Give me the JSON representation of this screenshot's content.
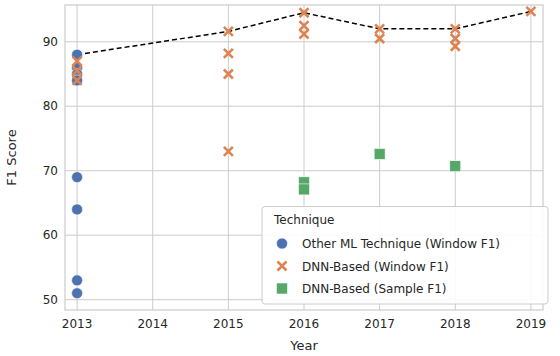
{
  "chart_data": {
    "type": "scatter",
    "x_label": "Year",
    "y_label": "F1 Score",
    "xlim": [
      2012.84,
      2019.16
    ],
    "ylim": [
      48.4,
      95.7
    ],
    "xticks": [
      2013,
      2014,
      2015,
      2016,
      2017,
      2018,
      2019
    ],
    "yticks": [
      50,
      60,
      70,
      80,
      90
    ],
    "grid": true,
    "legend": "lower right",
    "legend_title": "Technique",
    "series": [
      {
        "name": "Other ML Technique (Window F1)",
        "color": "#4c72b0",
        "marker": "circle",
        "x": [
          2013,
          2013,
          2013,
          2013,
          2013,
          2013,
          2013,
          2013
        ],
        "values": [
          88,
          86,
          85,
          84,
          69,
          64,
          53,
          51
        ]
      },
      {
        "name": "DNN-Based (Window F1)",
        "color": "#dd8452",
        "marker": "x",
        "x": [
          2013,
          2013,
          2013,
          2015,
          2015,
          2015,
          2015,
          2016,
          2016,
          2016,
          2017,
          2017,
          2018,
          2018,
          2018,
          2019
        ],
        "values": [
          87,
          85.5,
          84,
          91.6,
          88.2,
          85,
          73,
          94.5,
          92.5,
          91.2,
          92,
          90.5,
          92,
          90.5,
          89.3,
          94.7
        ]
      },
      {
        "name": "DNN-Based (Sample F1)",
        "color": "#55a868",
        "marker": "square",
        "x": [
          2016,
          2016,
          2017,
          2018
        ],
        "values": [
          68.2,
          67.1,
          72.6,
          70.7
        ]
      },
      {
        "type": "line",
        "color": "#000000",
        "line_style": "dashed",
        "x": [
          2013,
          2015,
          2016,
          2017,
          2018,
          2019
        ],
        "values": [
          88,
          91.6,
          94.5,
          92,
          92,
          94.7
        ]
      }
    ]
  }
}
